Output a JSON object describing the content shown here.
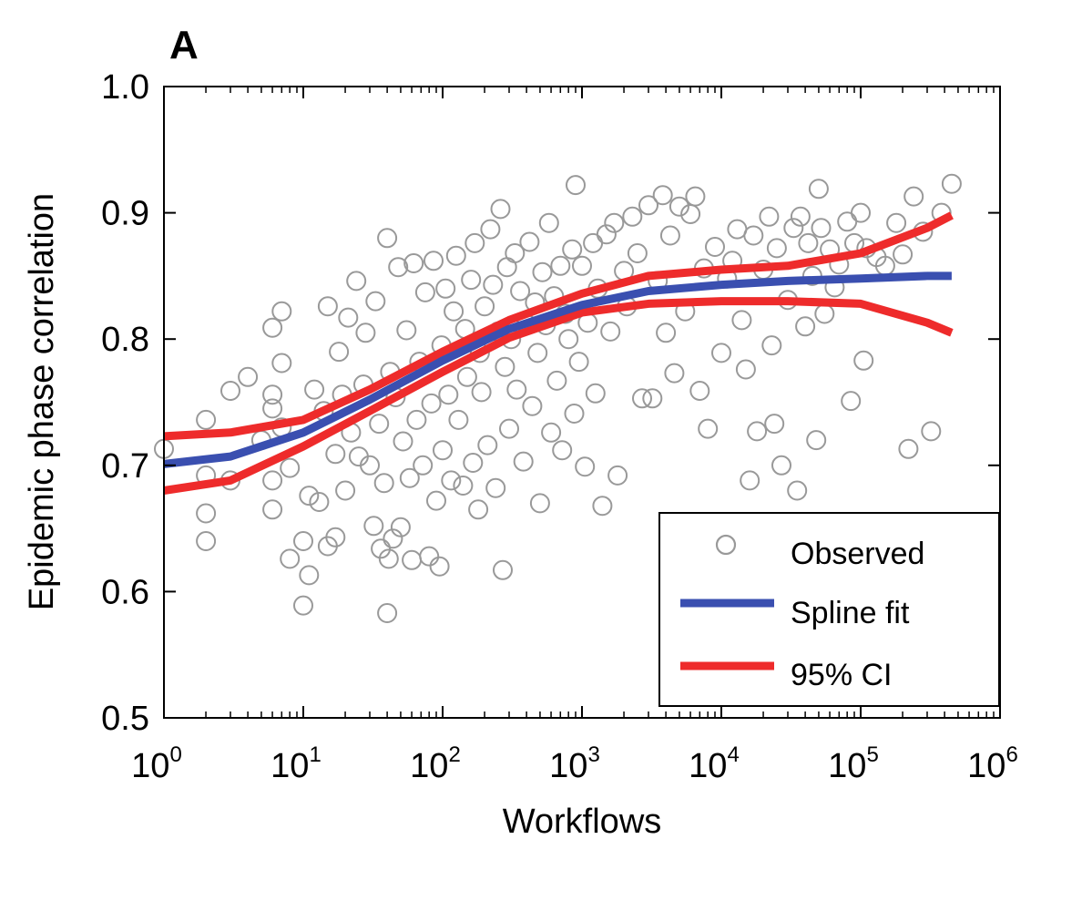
{
  "chart_data": {
    "type": "scatter",
    "panel_label": "A",
    "xlabel": "Workflows",
    "ylabel": "Epidemic phase correlation",
    "x_scale": "log",
    "xlim": [
      1,
      1000000
    ],
    "ylim": [
      0.5,
      1.0
    ],
    "x_ticks": [
      {
        "value": 1,
        "base": "10",
        "exp": "0"
      },
      {
        "value": 10,
        "base": "10",
        "exp": "1"
      },
      {
        "value": 100,
        "base": "10",
        "exp": "2"
      },
      {
        "value": 1000,
        "base": "10",
        "exp": "3"
      },
      {
        "value": 10000,
        "base": "10",
        "exp": "4"
      },
      {
        "value": 100000,
        "base": "10",
        "exp": "5"
      },
      {
        "value": 1000000,
        "base": "10",
        "exp": "6"
      }
    ],
    "y_ticks": [
      {
        "value": 0.5,
        "label": "0.5"
      },
      {
        "value": 0.6,
        "label": "0.6"
      },
      {
        "value": 0.7,
        "label": "0.7"
      },
      {
        "value": 0.8,
        "label": "0.8"
      },
      {
        "value": 0.9,
        "label": "0.9"
      },
      {
        "value": 1.0,
        "label": "1.0"
      }
    ],
    "grid": false,
    "legend_position": "bottom-right",
    "legend": [
      {
        "label": "Observed",
        "marker": "circle",
        "color": "#999999"
      },
      {
        "label": "Spline fit",
        "marker": "line",
        "color": "#3a4fb0"
      },
      {
        "label": "95% CI",
        "marker": "line",
        "color": "#ee2b2b"
      }
    ],
    "series": [
      {
        "name": "Observed",
        "kind": "points",
        "color": "#999999",
        "points": [
          [
            1,
            0.713
          ],
          [
            2,
            0.736
          ],
          [
            2,
            0.662
          ],
          [
            2,
            0.64
          ],
          [
            2,
            0.692
          ],
          [
            3,
            0.759
          ],
          [
            3,
            0.688
          ],
          [
            4,
            0.77
          ],
          [
            5,
            0.72
          ],
          [
            6,
            0.809
          ],
          [
            6,
            0.745
          ],
          [
            6,
            0.756
          ],
          [
            6,
            0.665
          ],
          [
            6,
            0.688
          ],
          [
            7,
            0.822
          ],
          [
            7,
            0.781
          ],
          [
            7,
            0.73
          ],
          [
            8,
            0.626
          ],
          [
            8,
            0.698
          ],
          [
            10,
            0.589
          ],
          [
            10,
            0.64
          ],
          [
            11,
            0.613
          ],
          [
            11,
            0.676
          ],
          [
            12,
            0.76
          ],
          [
            13,
            0.671
          ],
          [
            14,
            0.743
          ],
          [
            15,
            0.636
          ],
          [
            15,
            0.826
          ],
          [
            17,
            0.643
          ],
          [
            17,
            0.709
          ],
          [
            18,
            0.79
          ],
          [
            19,
            0.756
          ],
          [
            20,
            0.68
          ],
          [
            21,
            0.817
          ],
          [
            22,
            0.726
          ],
          [
            24,
            0.846
          ],
          [
            25,
            0.707
          ],
          [
            27,
            0.764
          ],
          [
            28,
            0.805
          ],
          [
            30,
            0.7
          ],
          [
            32,
            0.652
          ],
          [
            33,
            0.83
          ],
          [
            35,
            0.733
          ],
          [
            36,
            0.634
          ],
          [
            38,
            0.686
          ],
          [
            40,
            0.88
          ],
          [
            40,
            0.583
          ],
          [
            41,
            0.626
          ],
          [
            42,
            0.774
          ],
          [
            44,
            0.642
          ],
          [
            46,
            0.754
          ],
          [
            48,
            0.857
          ],
          [
            50,
            0.651
          ],
          [
            52,
            0.719
          ],
          [
            55,
            0.807
          ],
          [
            58,
            0.69
          ],
          [
            60,
            0.625
          ],
          [
            62,
            0.86
          ],
          [
            65,
            0.736
          ],
          [
            68,
            0.782
          ],
          [
            72,
            0.7
          ],
          [
            75,
            0.837
          ],
          [
            80,
            0.628
          ],
          [
            83,
            0.749
          ],
          [
            86,
            0.862
          ],
          [
            90,
            0.672
          ],
          [
            95,
            0.62
          ],
          [
            98,
            0.795
          ],
          [
            100,
            0.712
          ],
          [
            105,
            0.84
          ],
          [
            110,
            0.756
          ],
          [
            115,
            0.688
          ],
          [
            120,
            0.822
          ],
          [
            125,
            0.866
          ],
          [
            130,
            0.736
          ],
          [
            140,
            0.684
          ],
          [
            145,
            0.808
          ],
          [
            150,
            0.77
          ],
          [
            160,
            0.847
          ],
          [
            165,
            0.702
          ],
          [
            170,
            0.876
          ],
          [
            180,
            0.665
          ],
          [
            185,
            0.789
          ],
          [
            190,
            0.758
          ],
          [
            200,
            0.826
          ],
          [
            210,
            0.716
          ],
          [
            220,
            0.887
          ],
          [
            230,
            0.843
          ],
          [
            240,
            0.682
          ],
          [
            250,
            0.806
          ],
          [
            260,
            0.903
          ],
          [
            270,
            0.617
          ],
          [
            280,
            0.778
          ],
          [
            290,
            0.857
          ],
          [
            300,
            0.729
          ],
          [
            310,
            0.8
          ],
          [
            330,
            0.868
          ],
          [
            340,
            0.76
          ],
          [
            360,
            0.838
          ],
          [
            380,
            0.703
          ],
          [
            400,
            0.812
          ],
          [
            420,
            0.877
          ],
          [
            440,
            0.747
          ],
          [
            460,
            0.829
          ],
          [
            480,
            0.789
          ],
          [
            500,
            0.67
          ],
          [
            520,
            0.853
          ],
          [
            550,
            0.811
          ],
          [
            580,
            0.892
          ],
          [
            600,
            0.726
          ],
          [
            630,
            0.834
          ],
          [
            660,
            0.767
          ],
          [
            700,
            0.858
          ],
          [
            720,
            0.712
          ],
          [
            760,
            0.82
          ],
          [
            800,
            0.8
          ],
          [
            850,
            0.871
          ],
          [
            880,
            0.741
          ],
          [
            900,
            0.922
          ],
          [
            950,
            0.782
          ],
          [
            1000,
            0.858
          ],
          [
            1050,
            0.699
          ],
          [
            1100,
            0.813
          ],
          [
            1200,
            0.876
          ],
          [
            1250,
            0.757
          ],
          [
            1300,
            0.84
          ],
          [
            1400,
            0.668
          ],
          [
            1500,
            0.883
          ],
          [
            1600,
            0.806
          ],
          [
            1700,
            0.892
          ],
          [
            1800,
            0.692
          ],
          [
            2000,
            0.854
          ],
          [
            2100,
            0.826
          ],
          [
            2300,
            0.897
          ],
          [
            2500,
            0.868
          ],
          [
            2700,
            0.753
          ],
          [
            3000,
            0.906
          ],
          [
            3200,
            0.753
          ],
          [
            3500,
            0.846
          ],
          [
            3800,
            0.914
          ],
          [
            4000,
            0.805
          ],
          [
            4300,
            0.882
          ],
          [
            4600,
            0.773
          ],
          [
            5000,
            0.905
          ],
          [
            5500,
            0.822
          ],
          [
            6000,
            0.899
          ],
          [
            6500,
            0.913
          ],
          [
            7000,
            0.759
          ],
          [
            7500,
            0.856
          ],
          [
            8000,
            0.729
          ],
          [
            9000,
            0.873
          ],
          [
            10000,
            0.789
          ],
          [
            11000,
            0.848
          ],
          [
            12000,
            0.862
          ],
          [
            13000,
            0.887
          ],
          [
            14000,
            0.815
          ],
          [
            15000,
            0.776
          ],
          [
            16000,
            0.688
          ],
          [
            17000,
            0.882
          ],
          [
            18000,
            0.727
          ],
          [
            20000,
            0.855
          ],
          [
            22000,
            0.897
          ],
          [
            23000,
            0.795
          ],
          [
            24000,
            0.733
          ],
          [
            25000,
            0.872
          ],
          [
            27000,
            0.7
          ],
          [
            30000,
            0.831
          ],
          [
            33000,
            0.888
          ],
          [
            35000,
            0.68
          ],
          [
            37000,
            0.897
          ],
          [
            40000,
            0.81
          ],
          [
            42000,
            0.876
          ],
          [
            45000,
            0.85
          ],
          [
            48000,
            0.72
          ],
          [
            50000,
            0.919
          ],
          [
            52000,
            0.888
          ],
          [
            55000,
            0.82
          ],
          [
            60000,
            0.871
          ],
          [
            65000,
            0.841
          ],
          [
            70000,
            0.859
          ],
          [
            80000,
            0.893
          ],
          [
            85000,
            0.751
          ],
          [
            90000,
            0.876
          ],
          [
            100000,
            0.9
          ],
          [
            105000,
            0.783
          ],
          [
            110000,
            0.872
          ],
          [
            130000,
            0.865
          ],
          [
            150000,
            0.858
          ],
          [
            180000,
            0.892
          ],
          [
            200000,
            0.867
          ],
          [
            220000,
            0.713
          ],
          [
            240000,
            0.913
          ],
          [
            280000,
            0.885
          ],
          [
            320000,
            0.727
          ],
          [
            380000,
            0.9
          ],
          [
            450000,
            0.923
          ]
        ]
      },
      {
        "name": "Spline fit",
        "kind": "line",
        "color": "#3a4fb0",
        "points": [
          [
            1,
            0.701
          ],
          [
            3,
            0.707
          ],
          [
            10,
            0.726
          ],
          [
            30,
            0.752
          ],
          [
            100,
            0.783
          ],
          [
            300,
            0.808
          ],
          [
            1000,
            0.827
          ],
          [
            3000,
            0.838
          ],
          [
            10000,
            0.843
          ],
          [
            30000,
            0.846
          ],
          [
            100000,
            0.848
          ],
          [
            300000,
            0.85
          ],
          [
            450000,
            0.85
          ]
        ]
      },
      {
        "name": "95% CI",
        "kind": "line",
        "color": "#ee2b2b",
        "points": [
          [
            1,
            0.723
          ],
          [
            3,
            0.726
          ],
          [
            10,
            0.736
          ],
          [
            30,
            0.76
          ],
          [
            100,
            0.79
          ],
          [
            300,
            0.815
          ],
          [
            1000,
            0.836
          ],
          [
            3000,
            0.85
          ],
          [
            10000,
            0.855
          ],
          [
            30000,
            0.858
          ],
          [
            100000,
            0.868
          ],
          [
            300000,
            0.888
          ],
          [
            450000,
            0.898
          ]
        ]
      },
      {
        "name": "95% CI",
        "kind": "line",
        "color": "#ee2b2b",
        "points": [
          [
            1,
            0.68
          ],
          [
            3,
            0.688
          ],
          [
            10,
            0.715
          ],
          [
            30,
            0.743
          ],
          [
            100,
            0.774
          ],
          [
            300,
            0.801
          ],
          [
            1000,
            0.821
          ],
          [
            3000,
            0.828
          ],
          [
            10000,
            0.83
          ],
          [
            30000,
            0.83
          ],
          [
            100000,
            0.828
          ],
          [
            300000,
            0.813
          ],
          [
            450000,
            0.805
          ]
        ]
      }
    ]
  }
}
